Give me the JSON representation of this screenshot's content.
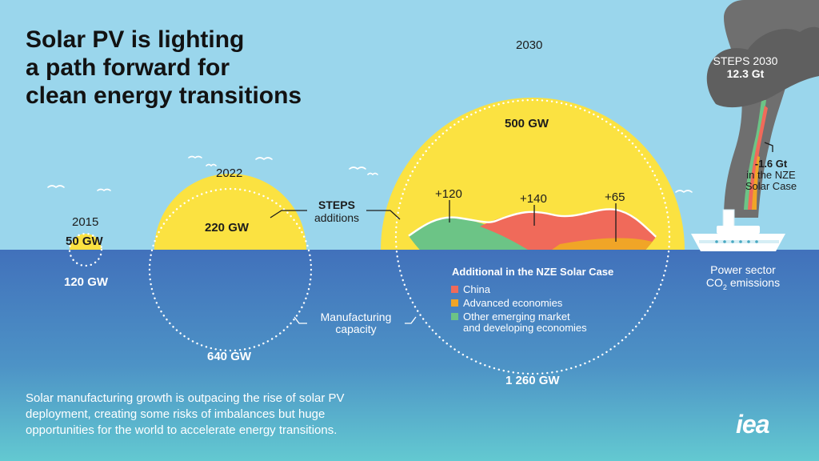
{
  "title": {
    "line1": "Solar PV is lighting",
    "line2": "a path forward for",
    "line3": "clean energy transitions"
  },
  "years": [
    {
      "year": "2015",
      "deployment": "50 GW",
      "manufacturing": "120 GW"
    },
    {
      "year": "2022",
      "deployment": "220 GW",
      "manufacturing": "640 GW"
    },
    {
      "year": "2030",
      "deployment": "500 GW",
      "manufacturing": "1 260 GW"
    }
  ],
  "labels": {
    "steps_line1": "STEPS",
    "steps_line2": "additions",
    "manufacturing_line1": "Manufacturing",
    "manufacturing_line2": "capacity"
  },
  "nze_additions": {
    "other": "+120",
    "china": "+140",
    "advanced": "+65"
  },
  "legend": {
    "title": "Additional in the NZE Solar Case",
    "items": [
      {
        "label": "China",
        "color": "#f06a5a"
      },
      {
        "label": "Advanced economies",
        "color": "#f0a527"
      },
      {
        "label": "Other emerging market",
        "label2": "and developing economies",
        "color": "#6cc486"
      }
    ]
  },
  "emissions": {
    "steps_label": "STEPS 2030",
    "steps_value": "12.3 Gt",
    "nze_value": "-1.6 Gt",
    "nze_line2": "in the NZE",
    "nze_line3": "Solar Case",
    "caption_line1": "Power sector",
    "caption_line2_pre": "CO",
    "caption_line2_sub": "2",
    "caption_line2_post": " emissions"
  },
  "footer": {
    "line1": "Solar manufacturing growth is outpacing the rise of solar PV",
    "line2": "deployment, creating some risks of imbalances but huge",
    "line3": "opportunities for the world to accelerate energy transitions."
  },
  "logo": "iea",
  "colors": {
    "sky": "#9ad6ec",
    "sea_top": "#4372bc",
    "sea_bottom": "#5ec3d0",
    "sun": "#fbe241",
    "china": "#f06a5a",
    "advanced": "#f0a527",
    "other": "#6cc486",
    "smoke": "#707070"
  }
}
